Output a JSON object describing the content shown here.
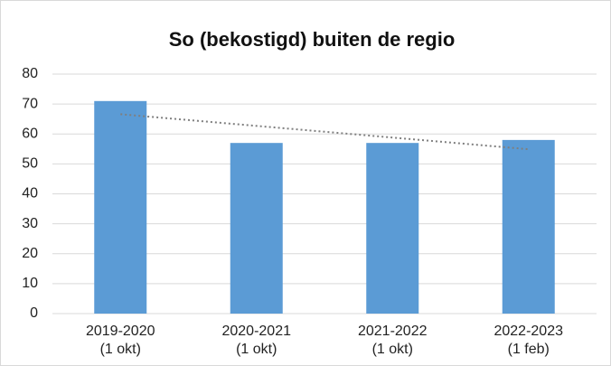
{
  "chart_data": {
    "type": "bar",
    "title": "So (bekostigd) buiten de regio",
    "categories": [
      [
        "2019-2020",
        "(1 okt)"
      ],
      [
        "2020-2021",
        "(1 okt)"
      ],
      [
        "2021-2022",
        "(1 okt)"
      ],
      [
        "2022-2023",
        "(1 feb)"
      ]
    ],
    "values": [
      71,
      57,
      57,
      58
    ],
    "color": "#5b9bd5",
    "ylim": [
      0,
      80
    ],
    "yticks": [
      0,
      10,
      20,
      30,
      40,
      50,
      60,
      70,
      80
    ],
    "grid": true,
    "trendline": {
      "type": "linear",
      "color": "#7f7f7f"
    }
  }
}
